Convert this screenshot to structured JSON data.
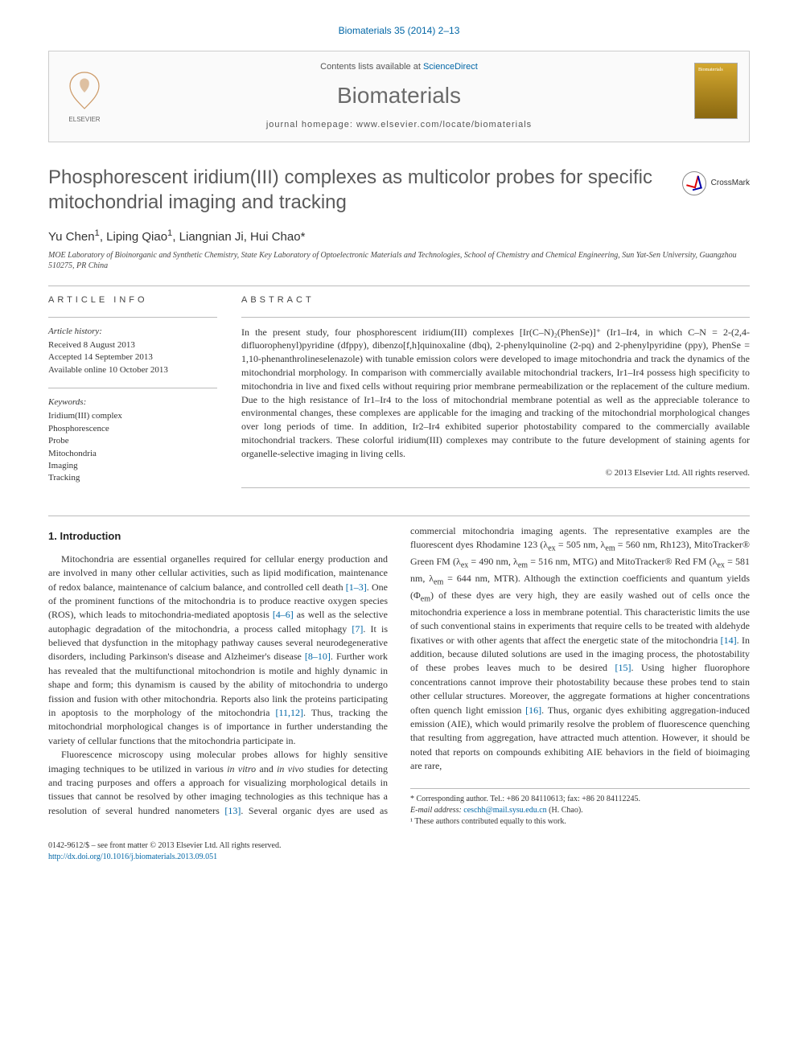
{
  "header": {
    "citation": "Biomaterials 35 (2014) 2–13",
    "contents_prefix": "Contents lists available at ",
    "contents_link": "ScienceDirect",
    "journal_name": "Biomaterials",
    "homepage_prefix": "journal homepage: ",
    "homepage_url": "www.elsevier.com/locate/biomaterials",
    "elsevier_label": "ELSEVIER"
  },
  "crossmark": {
    "label": "CrossMark"
  },
  "article": {
    "title": "Phosphorescent iridium(III) complexes as multicolor probes for specific mitochondrial imaging and tracking",
    "authors_html": "Yu Chen<sup>1</sup>, Liping Qiao<sup>1</sup>, Liangnian Ji, Hui Chao*",
    "affiliation": "MOE Laboratory of Bioinorganic and Synthetic Chemistry, State Key Laboratory of Optoelectronic Materials and Technologies, School of Chemistry and Chemical Engineering, Sun Yat-Sen University, Guangzhou 510275, PR China"
  },
  "info": {
    "label": "ARTICLE INFO",
    "history_label": "Article history:",
    "history": [
      "Received 8 August 2013",
      "Accepted 14 September 2013",
      "Available online 10 October 2013"
    ],
    "keywords_label": "Keywords:",
    "keywords": [
      "Iridium(III) complex",
      "Phosphorescence",
      "Probe",
      "Mitochondria",
      "Imaging",
      "Tracking"
    ]
  },
  "abstract": {
    "label": "ABSTRACT",
    "text": "In the present study, four phosphorescent iridium(III) complexes [Ir(C–N)₂(PhenSe)]⁺ (Ir1–Ir4, in which C–N = 2-(2,4-difluorophenyl)pyridine (dfppy), dibenzo[f,h]quinoxaline (dbq), 2-phenylquinoline (2-pq) and 2-phenylpyridine (ppy), PhenSe = 1,10-phenanthrolineselenazole) with tunable emission colors were developed to image mitochondria and track the dynamics of the mitochondrial morphology. In comparison with commercially available mitochondrial trackers, Ir1–Ir4 possess high specificity to mitochondria in live and fixed cells without requiring prior membrane permeabilization or the replacement of the culture medium. Due to the high resistance of Ir1–Ir4 to the loss of mitochondrial membrane potential as well as the appreciable tolerance to environmental changes, these complexes are applicable for the imaging and tracking of the mitochondrial morphological changes over long periods of time. In addition, Ir2–Ir4 exhibited superior photostability compared to the commercially available mitochondrial trackers. These colorful iridium(III) complexes may contribute to the future development of staining agents for organelle-selective imaging in living cells.",
    "copyright": "© 2013 Elsevier Ltd. All rights reserved."
  },
  "body": {
    "heading": "1. Introduction",
    "p1_parts": [
      "Mitochondria are essential organelles required for cellular energy production and are involved in many other cellular activities, such as lipid modification, maintenance of redox balance, maintenance of calcium balance, and controlled cell death ",
      ". One of the prominent functions of the mitochondria is to produce reactive oxygen species (ROS), which leads to mitochondria-mediated apoptosis ",
      " as well as the selective autophagic degradation of the mitochondria, a process called mitophagy ",
      ". It is believed that dysfunction in the mitophagy pathway causes several neurodegenerative disorders, including Parkinson's disease and Alzheimer's disease ",
      ". Further work has revealed that the multifunctional mitochondrion is motile and highly dynamic in shape and form; this dynamism is caused by the ability of mitochondria to undergo fission and fusion with other mitochondria. Reports also link the proteins participating in apoptosis to the morphology of the mitochondria ",
      ". Thus, tracking the mitochondrial morphological changes is of importance in further understanding the variety of cellular functions that the mitochondria participate in."
    ],
    "p1_refs": [
      "[1–3]",
      "[4–6]",
      "[7]",
      "[8–10]",
      "[11,12]"
    ],
    "p2_parts": [
      "Fluorescence microscopy using molecular probes allows for highly sensitive imaging techniques to be utilized in various ",
      "in vitro",
      " and ",
      "in vivo",
      " studies for detecting and tracing purposes and offers a approach for visualizing morphological details in tissues that cannot be resolved by other imaging technologies as this technique has a resolution of several hundred nanometers ",
      ". Several organic dyes are used as commercial mitochondria imaging agents. The representative examples are the fluorescent dyes Rhodamine 123 (λ",
      " = 505 nm, λ",
      " = 560 nm, Rh123), MitoTracker® Green FM (λ",
      " = 490 nm, λ",
      " = 516 nm, MTG) and MitoTracker® Red FM (λ",
      " = 581 nm, λ",
      " = 644 nm, MTR). Although the extinction coefficients and quantum yields (Φ",
      ") of these dyes are very high, they are easily washed out of cells once the mitochondria experience a loss in membrane potential. This characteristic limits the use of such conventional stains in experiments that require cells to be treated with aldehyde fixatives or with other agents that affect the energetic state of the mitochondria ",
      ". In addition, because diluted solutions are used in the imaging process, the photostability of these probes leaves much to be desired ",
      ". Using higher fluorophore concentrations cannot improve their photostability because these probes tend to stain other cellular structures. Moreover, the aggregate formations at higher concentrations often quench light emission ",
      ". Thus, organic dyes exhibiting aggregation-induced emission (AIE), which would primarily resolve the problem of fluorescence quenching that resulting from aggregation, have attracted much attention. However, it should be noted that reports on compounds exhibiting AIE behaviors in the field of bioimaging are rare,"
    ],
    "p2_refs": [
      "[13]",
      "[14]",
      "[15]",
      "[16]"
    ],
    "p2_subs": [
      "ex",
      "em",
      "ex",
      "em",
      "ex",
      "em",
      "em"
    ]
  },
  "footnotes": {
    "corr_prefix": "* Corresponding author. Tel.: +86 20 84110613; fax: +86 20 84112245.",
    "email_label": "E-mail address: ",
    "email": "ceschh@mail.sysu.edu.cn",
    "email_suffix": " (H. Chao).",
    "equal": "¹ These authors contributed equally to this work."
  },
  "bottom": {
    "frontmatter": "0142-9612/$ – see front matter © 2013 Elsevier Ltd. All rights reserved.",
    "doi_url": "http://dx.doi.org/10.1016/j.biomaterials.2013.09.051"
  },
  "colors": {
    "link": "#0066a6",
    "gray_text": "#5a5a5a"
  }
}
